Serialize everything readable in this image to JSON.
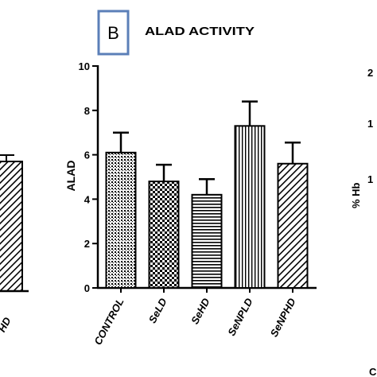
{
  "panel_label": "B",
  "chart_data": [
    {
      "type": "bar",
      "title": "ALAD ACTIVITY",
      "ylabel": "ALAD",
      "xlabel": "",
      "categories": [
        "CONTROL",
        "SeLD",
        "SeHD",
        "SeNPLD",
        "SeNPHD"
      ],
      "values": [
        6.1,
        4.8,
        4.2,
        7.3,
        5.6
      ],
      "errors": [
        0.9,
        0.75,
        0.7,
        1.1,
        0.95
      ],
      "patterns": [
        "fine-dots",
        "checker",
        "horizontal-lines",
        "vertical-lines",
        "diagonal-lines"
      ],
      "ylim": [
        0,
        10
      ],
      "yticks": [
        "0",
        "2",
        "4",
        "6",
        "8",
        "10"
      ],
      "grid": false
    }
  ],
  "partial_left": {
    "tick_label": "HD"
  },
  "partial_right": {
    "ylabel": "% Hb",
    "tick_labels": [
      "2",
      "1",
      "1"
    ],
    "corner_label": "C"
  },
  "colors": {
    "panel_border": "#5b7fb8",
    "ink": "#000000"
  }
}
